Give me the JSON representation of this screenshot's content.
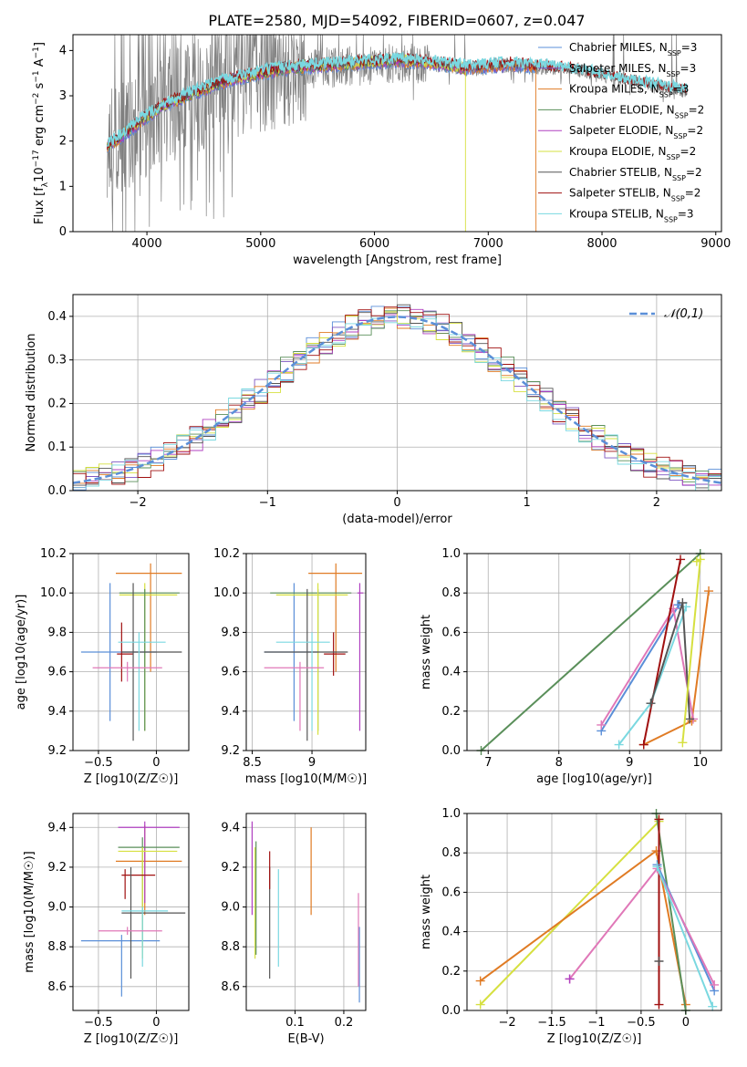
{
  "figure_title": "PLATE=2580, MJD=54092, FIBERID=0607, z=0.047",
  "colors": {
    "Chabrier MILES": "#5b8fd8",
    "Salpeter MILES": "#7e57c2",
    "Kroupa MILES": "#e07b24",
    "Chabrier ELODIE": "#5a8f5a",
    "Salpeter ELODIE": "#b040c0",
    "Kroupa ELODIE": "#d6e040",
    "Chabrier STELIB": "#555555",
    "Salpeter STELIB": "#a01010",
    "Kroupa STELIB": "#7ad8e0",
    "pink": "#e078b8",
    "normal_curve": "#5b8fd8",
    "data": "#808080"
  },
  "chart_data": [
    {
      "type": "line",
      "panel": "spectrum",
      "title": "PLATE=2580, MJD=54092, FIBERID=0607, z=0.047",
      "xlabel": "wavelength [Angstrom, rest frame]",
      "ylabel": "Flux [f_λ 10^-17 erg cm^-2 s^-1 A^-1]",
      "xlim": [
        3350,
        9050
      ],
      "ylim": [
        0,
        4.35
      ],
      "xticks": [
        4000,
        5000,
        6000,
        7000,
        8000,
        9000
      ],
      "yticks": [
        0,
        1,
        2,
        3,
        4
      ],
      "grid": false,
      "legend_position": "right",
      "legend": [
        "Chabrier MILES, N_SSP=3",
        "Salpeter MILES, N_SSP=3",
        "Kroupa MILES, N_SSP=3",
        "Chabrier ELODIE, N_SSP=2",
        "Salpeter ELODIE, N_SSP=2",
        "Kroupa ELODIE, N_SSP=2",
        "Chabrier STELIB, N_SSP=2",
        "Salpeter STELIB, N_SSP=2",
        "Kroupa STELIB, N_SSP=3"
      ],
      "series": [
        {
          "role": "data",
          "x": [
            3650,
            3800,
            4000,
            4200,
            4400,
            4600,
            4800,
            5000,
            5200,
            5400,
            5600,
            5800,
            6000,
            6200,
            6400,
            6600,
            6800,
            7000,
            7200,
            7400,
            7600,
            7800,
            8000,
            8200,
            8400,
            8600,
            8750
          ],
          "y": [
            1.8,
            2.2,
            2.5,
            2.8,
            3.0,
            3.2,
            3.35,
            3.45,
            3.55,
            3.6,
            3.62,
            3.65,
            3.7,
            3.72,
            3.7,
            3.65,
            3.55,
            3.6,
            3.65,
            3.62,
            3.6,
            3.55,
            3.45,
            3.35,
            3.25,
            3.15,
            3.1
          ]
        },
        {
          "role": "model",
          "x": [
            3650,
            3800,
            4000,
            4200,
            4400,
            4600,
            4800,
            5000,
            5200,
            5400,
            5600,
            5800,
            6000,
            6200,
            6400,
            6600,
            6800,
            7000,
            7200,
            7400,
            7600,
            7800,
            8000,
            8200,
            8400,
            8600,
            8750
          ],
          "y": [
            1.9,
            2.15,
            2.55,
            2.85,
            3.05,
            3.25,
            3.4,
            3.5,
            3.6,
            3.65,
            3.68,
            3.72,
            3.75,
            3.78,
            3.76,
            3.7,
            3.62,
            3.66,
            3.7,
            3.66,
            3.62,
            3.55,
            3.45,
            3.35,
            3.25,
            3.15,
            3.1
          ]
        }
      ]
    },
    {
      "type": "line",
      "panel": "residuals",
      "xlabel": "(data-model)/error",
      "ylabel": "Normed distribution",
      "xlim": [
        -2.5,
        2.5
      ],
      "ylim": [
        0,
        0.45
      ],
      "xticks": [
        -2,
        -1,
        0,
        1,
        2
      ],
      "yticks": [
        0.0,
        0.1,
        0.2,
        0.3,
        0.4
      ],
      "grid": true,
      "legend_position": "top-right",
      "normal_label": "𝒩(0,1)",
      "bin_width": 0.1,
      "bin_start": -2.5
    },
    {
      "type": "scatter",
      "panel": "Z-age",
      "xlabel": "Z [log10(Z/Z☉)]",
      "ylabel": "age [log10(age/yr)]",
      "xlim": [
        -0.72,
        0.28
      ],
      "ylim": [
        9.2,
        10.2
      ],
      "xticks": [
        -0.5,
        0.0
      ],
      "yticks": [
        9.2,
        9.4,
        9.6,
        9.8,
        10.0,
        10.2
      ],
      "grid": true,
      "errorbars": [
        {
          "c": "Kroupa MILES",
          "x": -0.05,
          "y": 10.1,
          "x0": -0.35,
          "x1": 0.22,
          "y0": 9.6,
          "y1": 10.15
        },
        {
          "c": "Chabrier MILES",
          "x": -0.4,
          "y": 9.7,
          "x0": -0.65,
          "x1": 0.0,
          "y0": 9.35,
          "y1": 10.05
        },
        {
          "c": "Kroupa ELODIE",
          "x": -0.1,
          "y": 9.99,
          "x0": -0.32,
          "x1": 0.18,
          "y0": 9.3,
          "y1": 10.05
        },
        {
          "c": "Chabrier ELODIE",
          "x": -0.1,
          "y": 10.0,
          "x0": -0.32,
          "x1": 0.2,
          "y0": 9.3,
          "y1": 10.02
        },
        {
          "c": "Salpeter STELIB",
          "x": -0.3,
          "y": 9.69,
          "x0": -0.34,
          "x1": -0.2,
          "y0": 9.55,
          "y1": 9.85
        },
        {
          "c": "Chabrier STELIB",
          "x": -0.2,
          "y": 9.7,
          "x0": -0.3,
          "x1": 0.22,
          "y0": 9.25,
          "y1": 10.05
        },
        {
          "c": "Kroupa STELIB",
          "x": -0.15,
          "y": 9.75,
          "x0": -0.33,
          "x1": 0.08,
          "y0": 9.3,
          "y1": 9.8
        },
        {
          "c": "pink",
          "x": -0.25,
          "y": 9.62,
          "x0": -0.55,
          "x1": 0.05,
          "y0": 9.55,
          "y1": 9.65
        }
      ]
    },
    {
      "type": "scatter",
      "panel": "mass-age",
      "xlabel": "mass [log10(M/M☉)]",
      "ylabel": "",
      "xlim": [
        8.45,
        9.45
      ],
      "ylim": [
        9.2,
        10.2
      ],
      "xticks": [
        8.5,
        9.0
      ],
      "yticks": [
        9.2,
        9.4,
        9.6,
        9.8,
        10.0,
        10.2
      ],
      "grid": true,
      "errorbars": [
        {
          "c": "Kroupa MILES",
          "x": 9.2,
          "y": 10.1,
          "x0": 8.97,
          "x1": 9.42,
          "y0": 9.6,
          "y1": 10.15
        },
        {
          "c": "Chabrier MILES",
          "x": 8.85,
          "y": 9.7,
          "x0": 8.6,
          "x1": 9.05,
          "y0": 9.35,
          "y1": 10.05
        },
        {
          "c": "Chabrier ELODIE",
          "x": 9.05,
          "y": 10.0,
          "x0": 8.65,
          "x1": 9.33,
          "y0": 9.3,
          "y1": 10.02
        },
        {
          "c": "Kroupa ELODIE",
          "x": 9.05,
          "y": 9.99,
          "x0": 8.7,
          "x1": 9.3,
          "y0": 9.28,
          "y1": 10.05
        },
        {
          "c": "Salpeter ELODIE",
          "x": 9.4,
          "y": 10.0,
          "x0": 9.38,
          "x1": 9.43,
          "y0": 9.3,
          "y1": 10.05
        },
        {
          "c": "Salpeter STELIB",
          "x": 9.18,
          "y": 9.69,
          "x0": 9.1,
          "x1": 9.28,
          "y0": 9.58,
          "y1": 9.8
        },
        {
          "c": "Chabrier STELIB",
          "x": 8.96,
          "y": 9.7,
          "x0": 8.6,
          "x1": 9.3,
          "y0": 9.25,
          "y1": 10.02
        },
        {
          "c": "Kroupa STELIB",
          "x": 9.0,
          "y": 9.75,
          "x0": 8.7,
          "x1": 9.15,
          "y0": 9.3,
          "y1": 9.8
        },
        {
          "c": "pink",
          "x": 8.9,
          "y": 9.62,
          "x0": 8.6,
          "x1": 9.1,
          "y0": 9.3,
          "y1": 9.65
        }
      ]
    },
    {
      "type": "line",
      "panel": "age-massweight",
      "xlabel": "age [log10(age/yr)]",
      "ylabel": "mass weight",
      "xlim": [
        6.7,
        10.3
      ],
      "ylim": [
        0.0,
        1.0
      ],
      "xticks": [
        7,
        8,
        9,
        10
      ],
      "yticks": [
        0.0,
        0.2,
        0.4,
        0.6,
        0.8,
        1.0
      ],
      "grid": true,
      "lines": [
        {
          "c": "Chabrier ELODIE",
          "x": [
            6.9,
            10.0
          ],
          "y": [
            0.0,
            1.0
          ]
        },
        {
          "c": "Kroupa MILES",
          "x": [
            9.2,
            9.88,
            10.12
          ],
          "y": [
            0.03,
            0.15,
            0.81
          ]
        },
        {
          "c": "Chabrier MILES",
          "x": [
            8.6,
            9.7,
            9.68
          ],
          "y": [
            0.1,
            0.74,
            0.74
          ]
        },
        {
          "c": "pink",
          "x": [
            8.6,
            9.62,
            9.9
          ],
          "y": [
            0.13,
            0.72,
            0.16
          ]
        },
        {
          "c": "Salpeter STELIB",
          "x": [
            9.2,
            9.72
          ],
          "y": [
            0.03,
            0.97
          ]
        },
        {
          "c": "Kroupa STELIB",
          "x": [
            8.85,
            9.3,
            9.8
          ],
          "y": [
            0.03,
            0.24,
            0.73
          ]
        },
        {
          "c": "Chabrier STELIB",
          "x": [
            9.3,
            9.75,
            9.85
          ],
          "y": [
            0.24,
            0.75,
            0.16
          ]
        },
        {
          "c": "Kroupa ELODIE",
          "x": [
            9.75,
            10.0,
            9.95
          ],
          "y": [
            0.04,
            0.97,
            0.96
          ]
        }
      ]
    },
    {
      "type": "scatter",
      "panel": "Z-mass",
      "xlabel": "Z [log10(Z/Z☉)]",
      "ylabel": "mass [log10(M/M☉)]",
      "xlim": [
        -0.72,
        0.28
      ],
      "ylim": [
        8.48,
        9.47
      ],
      "xticks": [
        -0.5,
        0.0
      ],
      "yticks": [
        8.6,
        8.8,
        9.0,
        9.2,
        9.4
      ],
      "grid": true,
      "errorbars": [
        {
          "c": "Kroupa MILES",
          "x": -0.1,
          "y": 9.23,
          "x0": -0.35,
          "x1": 0.22,
          "y0": 8.96,
          "y1": 9.41
        },
        {
          "c": "Chabrier MILES",
          "x": -0.3,
          "y": 8.83,
          "x0": -0.65,
          "x1": 0.03,
          "y0": 8.55,
          "y1": 8.86
        },
        {
          "c": "Salpeter ELODIE",
          "x": -0.1,
          "y": 9.4,
          "x0": -0.33,
          "x1": 0.2,
          "y0": 9.02,
          "y1": 9.43
        },
        {
          "c": "Chabrier ELODIE",
          "x": -0.12,
          "y": 9.3,
          "x0": -0.33,
          "x1": 0.2,
          "y0": 8.8,
          "y1": 9.35
        },
        {
          "c": "Kroupa ELODIE",
          "x": -0.12,
          "y": 9.28,
          "x0": -0.33,
          "x1": 0.18,
          "y0": 8.74,
          "y1": 9.3
        },
        {
          "c": "Salpeter STELIB",
          "x": -0.27,
          "y": 9.16,
          "x0": -0.3,
          "x1": -0.01,
          "y0": 9.04,
          "y1": 9.19
        },
        {
          "c": "Chabrier STELIB",
          "x": -0.22,
          "y": 8.97,
          "x0": -0.3,
          "x1": 0.25,
          "y0": 8.64,
          "y1": 9.2
        },
        {
          "c": "Kroupa STELIB",
          "x": -0.12,
          "y": 8.98,
          "x0": -0.3,
          "x1": 0.1,
          "y0": 8.7,
          "y1": 9.0
        },
        {
          "c": "pink",
          "x": -0.25,
          "y": 8.88,
          "x0": -0.5,
          "x1": 0.05,
          "y0": 8.86,
          "y1": 8.9
        }
      ]
    },
    {
      "type": "scatter",
      "panel": "EBV-mass",
      "xlabel": "E(B-V)",
      "ylabel": "",
      "xlim": [
        0.0,
        0.245
      ],
      "ylim": [
        8.48,
        9.47
      ],
      "xticks": [
        0.1,
        0.2
      ],
      "yticks": [
        8.6,
        8.8,
        9.0,
        9.2,
        9.4
      ],
      "grid": true,
      "errorbars": [
        {
          "c": "Salpeter ELODIE",
          "x": 0.012,
          "y": 9.4,
          "y0": 8.96,
          "y1": 9.43
        },
        {
          "c": "Kroupa ELODIE",
          "x": 0.018,
          "y": 9.28,
          "y0": 8.74,
          "y1": 9.3
        },
        {
          "c": "Chabrier ELODIE",
          "x": 0.02,
          "y": 9.3,
          "y0": 8.76,
          "y1": 9.33
        },
        {
          "c": "Chabrier STELIB",
          "x": 0.048,
          "y": 8.97,
          "y0": 8.64,
          "y1": 9.2
        },
        {
          "c": "Salpeter STELIB",
          "x": 0.048,
          "y": 9.16,
          "y0": 9.09,
          "y1": 9.28
        },
        {
          "c": "Kroupa STELIB",
          "x": 0.066,
          "y": 8.98,
          "y0": 8.7,
          "y1": 9.19
        },
        {
          "c": "Kroupa MILES",
          "x": 0.133,
          "y": 9.23,
          "y0": 8.96,
          "y1": 9.4
        },
        {
          "c": "Chabrier MILES",
          "x": 0.232,
          "y": 8.83,
          "y0": 8.52,
          "y1": 8.9
        },
        {
          "c": "pink",
          "x": 0.23,
          "y": 8.88,
          "y0": 8.6,
          "y1": 9.07
        }
      ]
    },
    {
      "type": "line",
      "panel": "Z-massweight",
      "xlabel": "Z [log10(Z/Z☉)]",
      "ylabel": "mass weight",
      "xlim": [
        -2.45,
        0.4
      ],
      "ylim": [
        0.0,
        1.0
      ],
      "xticks": [
        -2.0,
        -1.5,
        -1.0,
        -0.5,
        0.0
      ],
      "yticks": [
        0.0,
        0.2,
        0.4,
        0.6,
        0.8,
        1.0
      ],
      "grid": true,
      "lines": [
        {
          "c": "Kroupa ELODIE",
          "x": [
            -2.3,
            -0.3,
            -0.3
          ],
          "y": [
            0.03,
            0.96,
            0.97
          ]
        },
        {
          "c": "Kroupa MILES",
          "x": [
            -2.3,
            -0.33,
            0.0
          ],
          "y": [
            0.15,
            0.81,
            0.03
          ]
        },
        {
          "c": "Chabrier ELODIE",
          "x": [
            -0.33,
            0.0
          ],
          "y": [
            1.0,
            0.0
          ]
        },
        {
          "c": "Salpeter STELIB",
          "x": [
            -0.3,
            -0.3
          ],
          "y": [
            0.03,
            0.97
          ]
        },
        {
          "c": "Chabrier MILES",
          "x": [
            -0.32,
            0.32
          ],
          "y": [
            0.74,
            0.1
          ]
        },
        {
          "c": "pink",
          "x": [
            -1.3,
            -0.32,
            0.32
          ],
          "y": [
            0.16,
            0.72,
            0.13
          ]
        },
        {
          "c": "Kroupa STELIB",
          "x": [
            -0.32,
            0.3
          ],
          "y": [
            0.73,
            0.02
          ]
        },
        {
          "c": "Salpeter ELODIE",
          "x": [
            -1.3
          ],
          "y": [
            0.16
          ]
        },
        {
          "c": "Chabrier STELIB",
          "x": [
            -0.3
          ],
          "y": [
            0.25
          ]
        }
      ]
    }
  ]
}
